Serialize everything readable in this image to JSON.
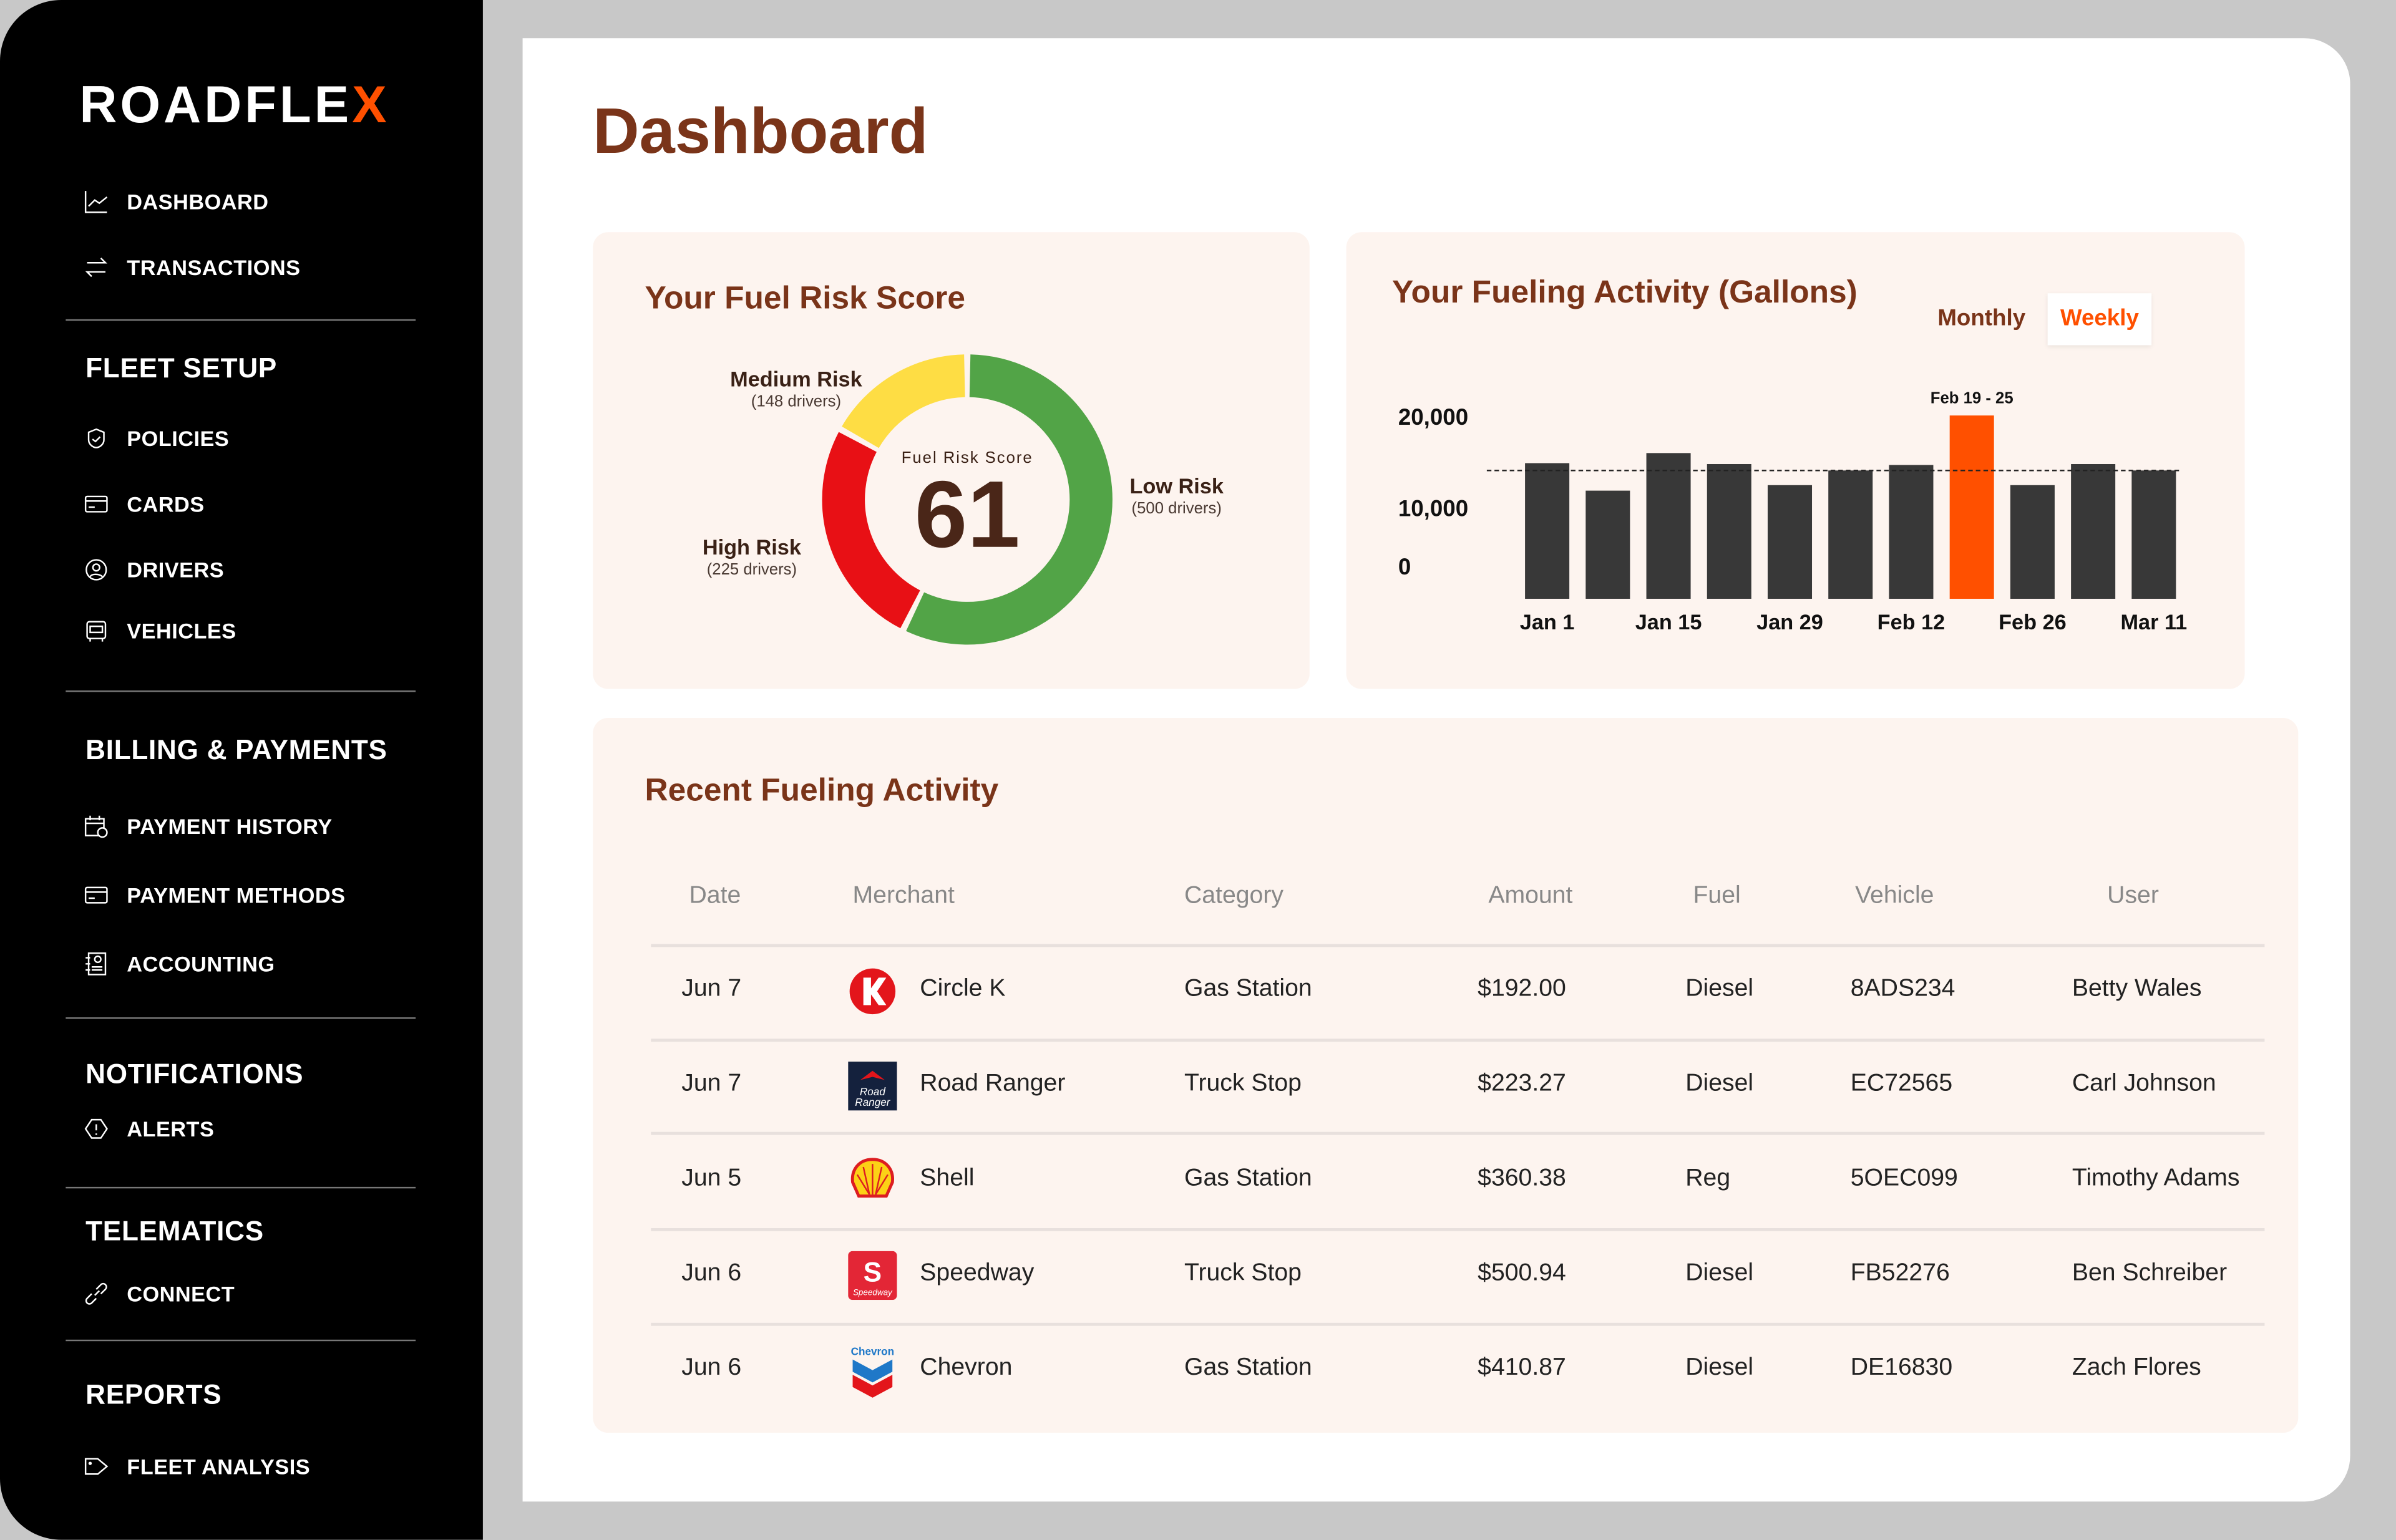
{
  "sidebar": {
    "logo": {
      "text_main": "ROADFLE",
      "text_accent": "X",
      "accent_color": "#ff5000"
    },
    "top_items": [
      {
        "label": "DASHBOARD",
        "icon": "line-chart-icon"
      },
      {
        "label": "TRANSACTIONS",
        "icon": "arrows-swap-icon"
      }
    ],
    "sections": [
      {
        "title": "FLEET SETUP",
        "items": [
          {
            "label": "POLICIES",
            "icon": "shield-check-icon"
          },
          {
            "label": "CARDS",
            "icon": "credit-card-icon"
          },
          {
            "label": "DRIVERS",
            "icon": "user-circle-icon"
          },
          {
            "label": "VEHICLES",
            "icon": "vehicle-icon"
          }
        ]
      },
      {
        "title": "BILLING & PAYMENTS",
        "items": [
          {
            "label": "PAYMENT HISTORY",
            "icon": "calendar-clock-icon"
          },
          {
            "label": "PAYMENT METHODS",
            "icon": "credit-card-icon"
          },
          {
            "label": "ACCOUNTING",
            "icon": "ledger-icon"
          }
        ]
      },
      {
        "title": "NOTIFICATIONS",
        "items": [
          {
            "label": "ALERTS",
            "icon": "alert-icon"
          }
        ]
      },
      {
        "title": "TELEMATICS",
        "items": [
          {
            "label": "CONNECT",
            "icon": "link-icon"
          }
        ]
      },
      {
        "title": "REPORTS",
        "items": [
          {
            "label": "FLEET ANALYSIS",
            "icon": "tag-icon"
          }
        ]
      }
    ]
  },
  "page_title": "Dashboard",
  "risk_card": {
    "title": "Your Fuel Risk Score",
    "center_label": "Fuel Risk Score",
    "score": "61",
    "segments": [
      {
        "name": "Low Risk",
        "drivers_label": "(500 drivers)",
        "drivers": 500,
        "color": "#52a447"
      },
      {
        "name": "High Risk",
        "drivers_label": "(225 drivers)",
        "drivers": 225,
        "color": "#e81015"
      },
      {
        "name": "Medium Risk",
        "drivers_label": "(148 drivers)",
        "drivers": 148,
        "color": "#fedd44"
      }
    ]
  },
  "activity_card": {
    "title": "Your Fueling Activity (Gallons)",
    "toggle": {
      "options": [
        "Monthly",
        "Weekly"
      ],
      "selected": "Weekly"
    }
  },
  "chart_data": {
    "type": "bar",
    "categories": [
      "Jan 1",
      "",
      "Jan 15",
      "",
      "Jan 29",
      "",
      "Feb 12",
      "",
      "Feb 26",
      "",
      "Mar 11"
    ],
    "values": [
      14800,
      11800,
      15900,
      14700,
      12400,
      14000,
      14600,
      20000,
      12400,
      14700,
      14000
    ],
    "highlight_index": 7,
    "highlight_label": "Feb 19 - 25",
    "highlight_color": "#ff5000",
    "bar_color": "#383838",
    "reference_line": 14000,
    "yticks": [
      "20,000",
      "10,000",
      "0"
    ],
    "ytick_values": [
      20000,
      10000,
      0
    ],
    "ylim": [
      0,
      20000
    ],
    "grid": false
  },
  "recent": {
    "title": "Recent Fueling Activity",
    "columns": [
      "Date",
      "Merchant",
      "Category",
      "Amount",
      "Fuel",
      "Vehicle",
      "User"
    ],
    "rows": [
      {
        "date": "Jun 7",
        "merchant": "Circle K",
        "logo": "circle-k-logo",
        "category": "Gas Station",
        "amount": "$192.00",
        "fuel": "Diesel",
        "vehicle": "8ADS234",
        "user": "Betty Wales"
      },
      {
        "date": "Jun 7",
        "merchant": "Road Ranger",
        "logo": "road-ranger-logo",
        "logo_text": "Road Ranger",
        "category": "Truck Stop",
        "amount": "$223.27",
        "fuel": "Diesel",
        "vehicle": "EC72565",
        "user": "Carl Johnson"
      },
      {
        "date": "Jun 5",
        "merchant": "Shell",
        "logo": "shell-logo",
        "category": "Gas Station",
        "amount": "$360.38",
        "fuel": "Reg",
        "vehicle": "5OEC099",
        "user": "Timothy Adams"
      },
      {
        "date": "Jun 6",
        "merchant": "Speedway",
        "logo": "speedway-logo",
        "logo_text": "Speedway",
        "category": "Truck Stop",
        "amount": "$500.94",
        "fuel": "Diesel",
        "vehicle": "FB52276",
        "user": "Ben Schreiber"
      },
      {
        "date": "Jun 6",
        "merchant": "Chevron",
        "logo": "chevron-logo",
        "logo_text": "Chevron",
        "category": "Gas Station",
        "amount": "$410.87",
        "fuel": "Diesel",
        "vehicle": "DE16830",
        "user": "Zach Flores"
      }
    ]
  }
}
